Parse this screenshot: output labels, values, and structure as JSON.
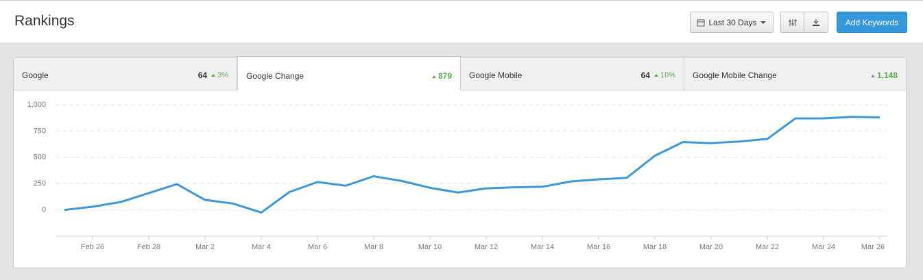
{
  "header": {
    "title": "Rankings",
    "date_range": "Last 30 Days",
    "add_button": "Add Keywords"
  },
  "tabs": [
    {
      "label": "Google",
      "value": "64",
      "change": "3%"
    },
    {
      "label": "Google Change",
      "change": "879"
    },
    {
      "label": "Google Mobile",
      "value": "64",
      "change": "10%"
    },
    {
      "label": "Google Mobile Change",
      "change": "1,148"
    }
  ],
  "chart_data": {
    "type": "line",
    "categories": [
      null,
      "Feb 26",
      null,
      "Feb 28",
      null,
      "Mar 2",
      null,
      "Mar 4",
      null,
      "Mar 6",
      null,
      "Mar 8",
      null,
      "Mar 10",
      null,
      "Mar 12",
      null,
      "Mar 14",
      null,
      "Mar 16",
      null,
      "Mar 18",
      null,
      "Mar 20",
      null,
      "Mar 22",
      null,
      "Mar 24",
      null,
      "Mar 26"
    ],
    "values": [
      0,
      30,
      75,
      160,
      245,
      95,
      60,
      -25,
      170,
      265,
      230,
      320,
      275,
      210,
      165,
      205,
      215,
      220,
      270,
      290,
      305,
      515,
      645,
      635,
      650,
      675,
      870,
      870,
      885,
      880
    ],
    "color": "#3d97d9",
    "ylim": [
      -250,
      1000
    ],
    "yticks": [
      {
        "value": 1000,
        "label": "1,000"
      },
      750,
      500,
      250,
      0
    ],
    "grid": true
  }
}
